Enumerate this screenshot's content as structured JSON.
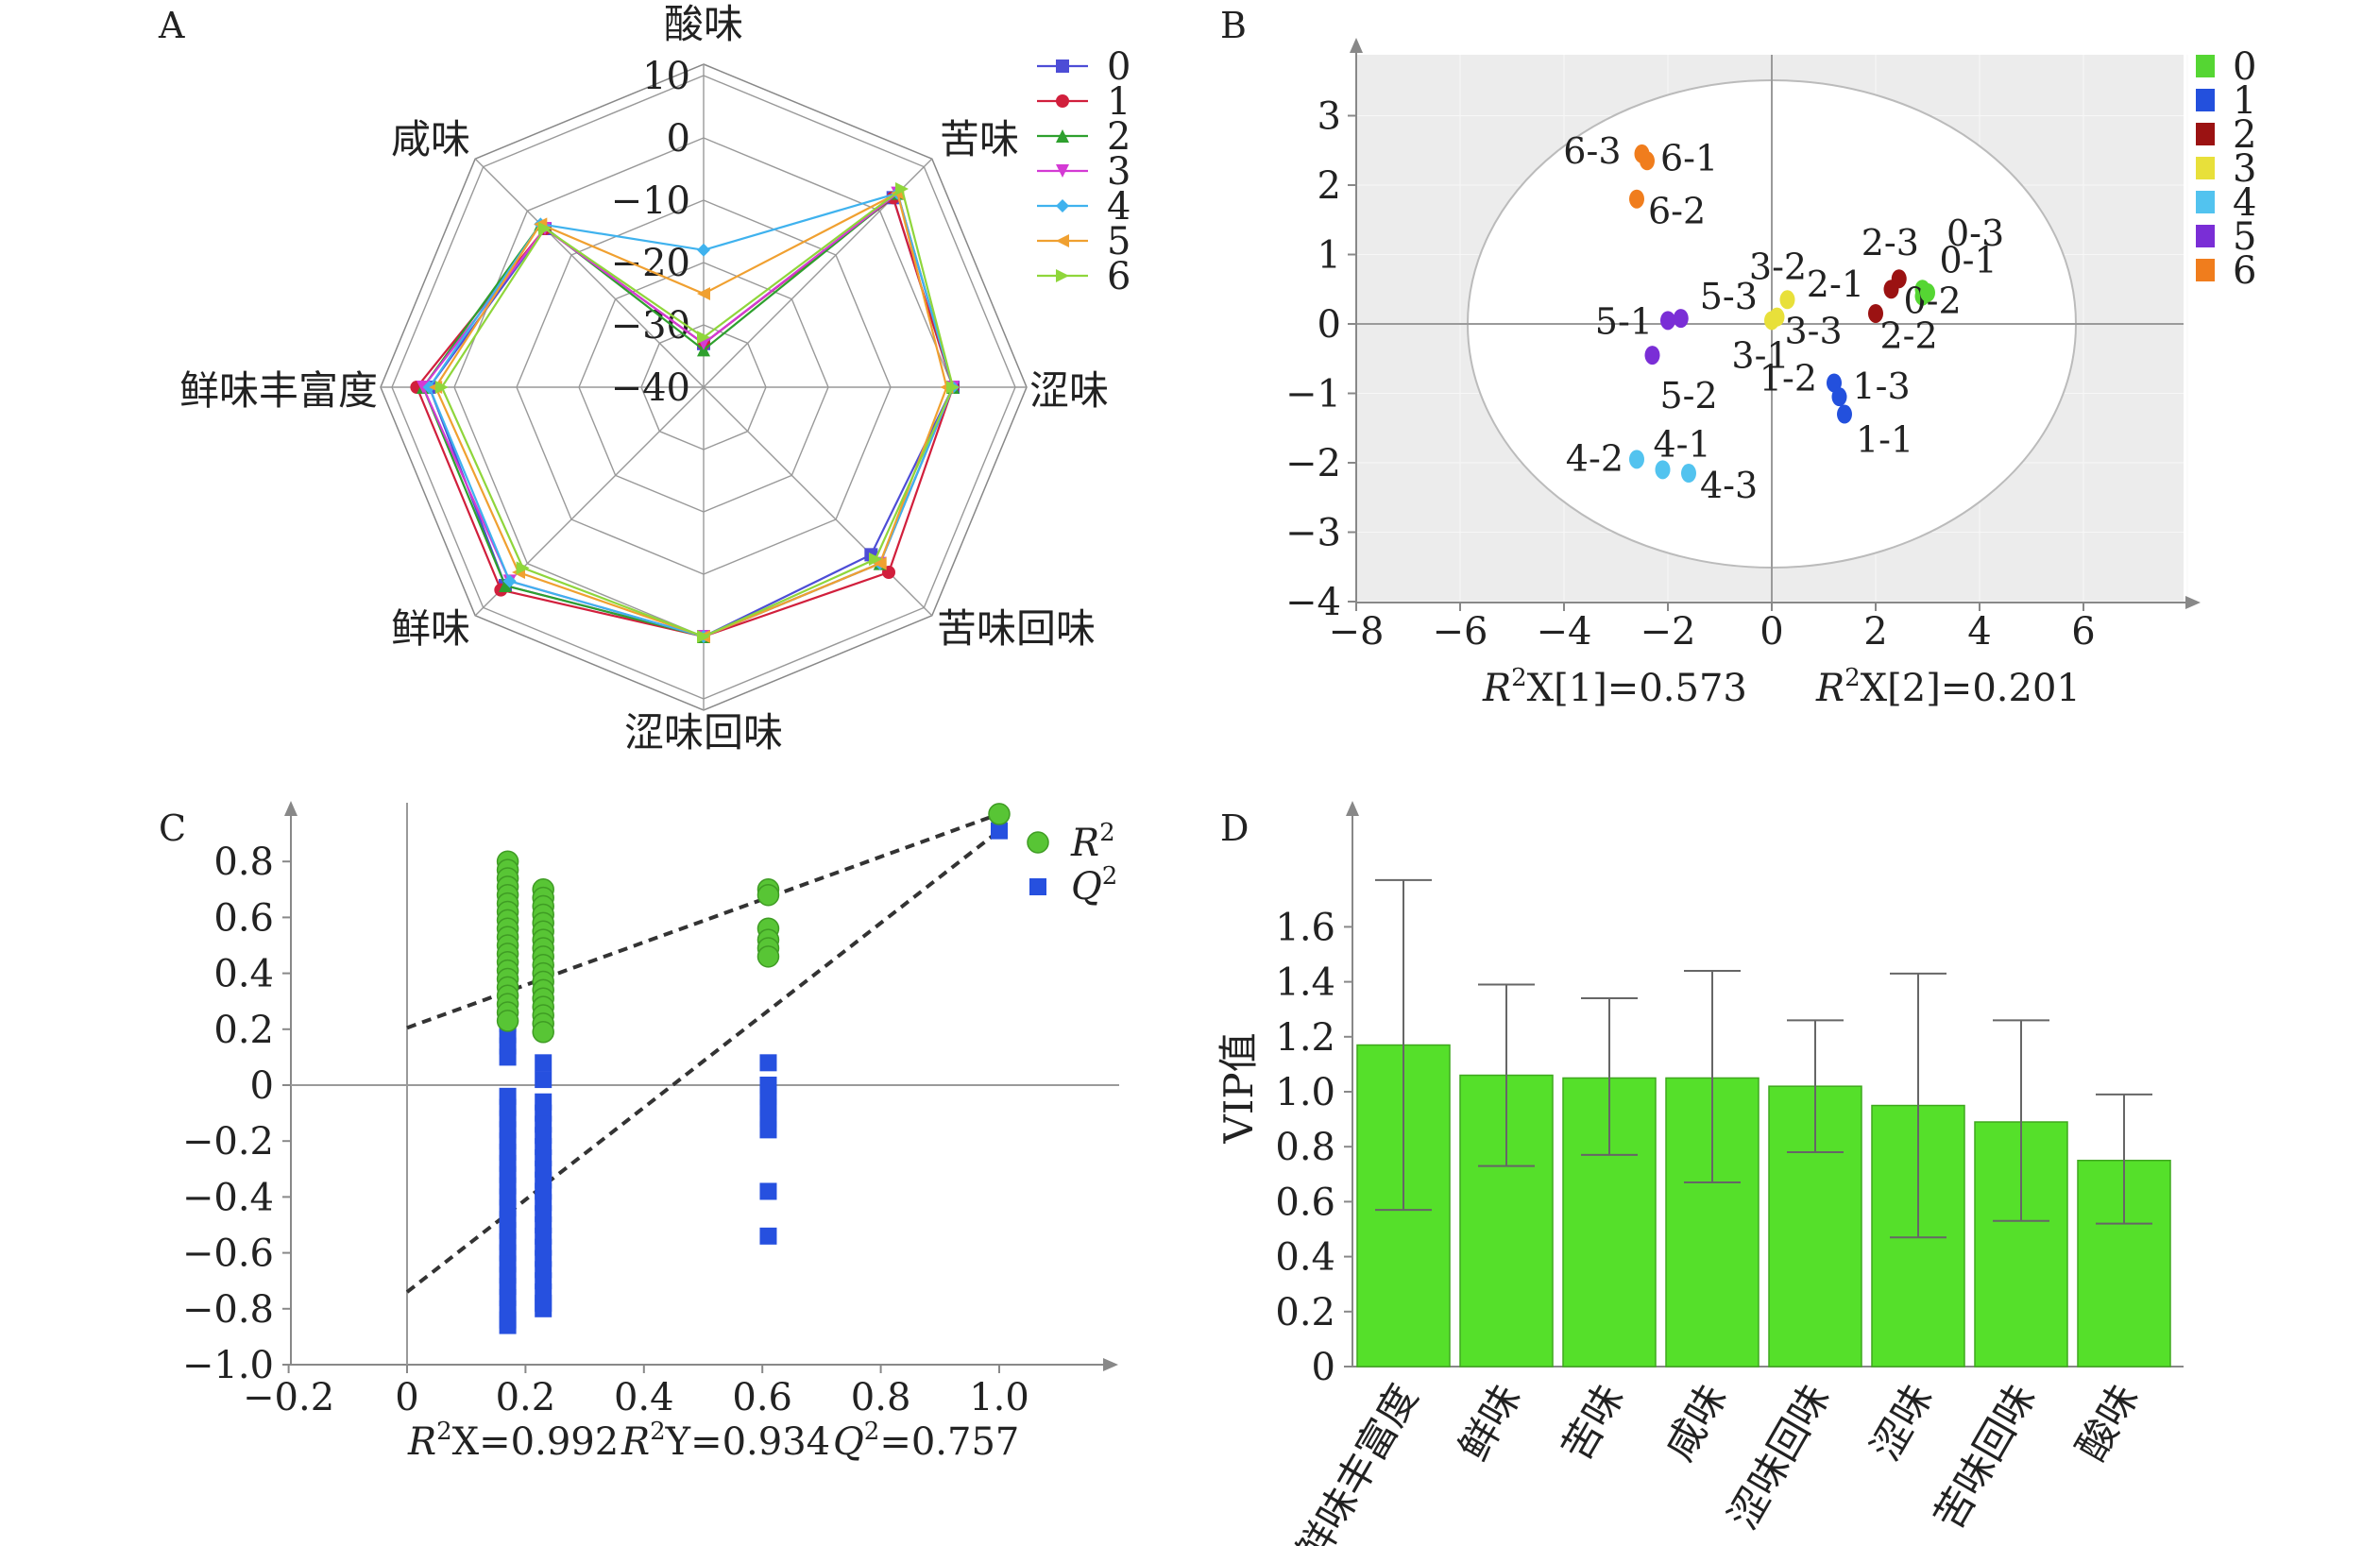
{
  "colors": {
    "s0": "#4d4dd6",
    "s1": "#d11f3c",
    "s2": "#2ea02e",
    "s3": "#d43ad4",
    "s4": "#3fb2ee",
    "s5": "#f0a030",
    "s6": "#8fd63b",
    "g0": "#55d633",
    "g1": "#2350dd",
    "g2": "#9b1212",
    "g3": "#e8e03a",
    "g4": "#52c3ef",
    "g5": "#7a2ed6",
    "g6": "#f07d1d",
    "bar": "#55e02a",
    "r2": "#58c535",
    "q2": "#2650df"
  },
  "chart_data": [
    {
      "panel": "A",
      "type": "radar",
      "axes": [
        "酸味",
        "苦味",
        "涩味",
        "苦味回味",
        "涩味回味",
        "鲜味",
        "鲜味丰富度",
        "咸味"
      ],
      "r_ticks": [
        "10",
        "0",
        "−10",
        "−20",
        "−30",
        "−40"
      ],
      "r_range": [
        -40,
        10
      ],
      "series": [
        {
          "name": "0",
          "values": [
            -33,
            3,
            0,
            -2,
            0,
            5,
            4,
            -4
          ]
        },
        {
          "name": "1",
          "values": [
            -33,
            3,
            0,
            2,
            0,
            6,
            6,
            -4
          ]
        },
        {
          "name": "2",
          "values": [
            -34,
            4,
            0,
            0,
            0,
            5,
            5,
            -3
          ]
        },
        {
          "name": "3",
          "values": [
            -33,
            4,
            0,
            0,
            0,
            4,
            5,
            -4
          ]
        },
        {
          "name": "4",
          "values": [
            -18,
            4,
            0,
            0,
            0,
            4,
            4,
            -3
          ]
        },
        {
          "name": "5",
          "values": [
            -25,
            4,
            -1,
            0,
            0,
            2,
            3,
            -3
          ]
        },
        {
          "name": "6",
          "values": [
            -32,
            5,
            0,
            -1,
            0,
            1,
            2,
            -4
          ]
        }
      ]
    },
    {
      "panel": "B",
      "type": "scatter",
      "xlim": [
        -8,
        8
      ],
      "ylim": [
        -4,
        3.7
      ],
      "x_ticks": [
        "−8",
        "−6",
        "−4",
        "−2",
        "0",
        "2",
        "4",
        "6"
      ],
      "y_ticks": [
        "3",
        "2",
        "1",
        "0",
        "−1",
        "−2",
        "−3",
        "−4"
      ],
      "xlabel_1": {
        "r": "R",
        "sup": "2",
        "rest": "X[1]=0.573"
      },
      "xlabel_2": {
        "r": "R",
        "sup": "2",
        "rest": "X[2]=0.201"
      },
      "legend": [
        "0",
        "1",
        "2",
        "3",
        "4",
        "5",
        "6"
      ],
      "points": [
        {
          "label": "0-1",
          "x": 2.9,
          "y": 0.5,
          "group": 0
        },
        {
          "label": "0-2",
          "x": 2.9,
          "y": 0.4,
          "group": 0
        },
        {
          "label": "0-3",
          "x": 3.0,
          "y": 0.45,
          "group": 0
        },
        {
          "label": "1-1",
          "x": 1.4,
          "y": -1.3,
          "group": 1
        },
        {
          "label": "1-2",
          "x": 1.2,
          "y": -0.85,
          "group": 1
        },
        {
          "label": "1-3",
          "x": 1.3,
          "y": -1.05,
          "group": 1
        },
        {
          "label": "2-1",
          "x": 2.0,
          "y": 0.15,
          "group": 2
        },
        {
          "label": "2-2",
          "x": 2.3,
          "y": 0.5,
          "group": 2
        },
        {
          "label": "2-3",
          "x": 2.45,
          "y": 0.65,
          "group": 2
        },
        {
          "label": "3-1",
          "x": 0.0,
          "y": 0.05,
          "group": 3
        },
        {
          "label": "3-2",
          "x": 0.3,
          "y": 0.35,
          "group": 3
        },
        {
          "label": "3-3",
          "x": 0.1,
          "y": 0.1,
          "group": 3
        },
        {
          "label": "4-1",
          "x": -2.1,
          "y": -2.1,
          "group": 4
        },
        {
          "label": "4-2",
          "x": -2.6,
          "y": -1.95,
          "group": 4
        },
        {
          "label": "4-3",
          "x": -1.6,
          "y": -2.15,
          "group": 4
        },
        {
          "label": "5-1",
          "x": -2.0,
          "y": 0.05,
          "group": 5
        },
        {
          "label": "5-2",
          "x": -2.3,
          "y": -0.45,
          "group": 5
        },
        {
          "label": "5-3",
          "x": -1.75,
          "y": 0.08,
          "group": 5
        },
        {
          "label": "6-1",
          "x": -2.4,
          "y": 2.35,
          "group": 6
        },
        {
          "label": "6-2",
          "x": -2.6,
          "y": 1.8,
          "group": 6
        },
        {
          "label": "6-3",
          "x": -2.5,
          "y": 2.45,
          "group": 6
        }
      ]
    },
    {
      "panel": "C",
      "type": "scatter",
      "xlim": [
        -0.2,
        1.2
      ],
      "ylim": [
        -1.0,
        0.95
      ],
      "x_ticks": [
        "−0.2",
        "0",
        "0.2",
        "0.4",
        "0.6",
        "0.8",
        "1.0"
      ],
      "y_ticks": [
        "0.8",
        "0.6",
        "0.4",
        "0.2",
        "0",
        "−0.2",
        "−0.4",
        "−0.6",
        "−0.8",
        "−1.0"
      ],
      "legend": [
        {
          "r": "R",
          "sup": "2"
        },
        {
          "r": "Q",
          "sup": "2"
        }
      ],
      "footer": [
        {
          "r": "R",
          "sup": "2",
          "rest": "X=0.992"
        },
        {
          "r": "R",
          "sup": "2",
          "rest": "Y=0.934"
        },
        {
          "r": "Q",
          "sup": "2",
          "rest": "=0.757"
        }
      ],
      "r2_points": [
        [
          0.17,
          0.8
        ],
        [
          0.17,
          0.77
        ],
        [
          0.17,
          0.74
        ],
        [
          0.17,
          0.71
        ],
        [
          0.17,
          0.68
        ],
        [
          0.17,
          0.65
        ],
        [
          0.17,
          0.62
        ],
        [
          0.17,
          0.59
        ],
        [
          0.17,
          0.56
        ],
        [
          0.17,
          0.53
        ],
        [
          0.17,
          0.5
        ],
        [
          0.17,
          0.47
        ],
        [
          0.17,
          0.44
        ],
        [
          0.17,
          0.41
        ],
        [
          0.17,
          0.38
        ],
        [
          0.17,
          0.35
        ],
        [
          0.17,
          0.32
        ],
        [
          0.17,
          0.29
        ],
        [
          0.17,
          0.26
        ],
        [
          0.17,
          0.23
        ],
        [
          0.23,
          0.7
        ],
        [
          0.23,
          0.67
        ],
        [
          0.23,
          0.64
        ],
        [
          0.23,
          0.61
        ],
        [
          0.23,
          0.58
        ],
        [
          0.23,
          0.55
        ],
        [
          0.23,
          0.52
        ],
        [
          0.23,
          0.49
        ],
        [
          0.23,
          0.46
        ],
        [
          0.23,
          0.43
        ],
        [
          0.23,
          0.4
        ],
        [
          0.23,
          0.37
        ],
        [
          0.23,
          0.34
        ],
        [
          0.23,
          0.31
        ],
        [
          0.23,
          0.28
        ],
        [
          0.23,
          0.25
        ],
        [
          0.23,
          0.22
        ],
        [
          0.23,
          0.19
        ],
        [
          0.61,
          0.7
        ],
        [
          0.61,
          0.68
        ],
        [
          0.61,
          0.56
        ],
        [
          0.61,
          0.52
        ],
        [
          0.61,
          0.49
        ],
        [
          0.61,
          0.46
        ],
        [
          1.0,
          0.97
        ]
      ],
      "q2_points": [
        [
          0.17,
          0.22
        ],
        [
          0.17,
          0.18
        ],
        [
          0.17,
          0.14
        ],
        [
          0.17,
          0.1
        ],
        [
          0.17,
          -0.04
        ],
        [
          0.17,
          -0.08
        ],
        [
          0.17,
          -0.12
        ],
        [
          0.17,
          -0.16
        ],
        [
          0.17,
          -0.2
        ],
        [
          0.17,
          -0.24
        ],
        [
          0.17,
          -0.28
        ],
        [
          0.17,
          -0.32
        ],
        [
          0.17,
          -0.36
        ],
        [
          0.17,
          -0.4
        ],
        [
          0.17,
          -0.44
        ],
        [
          0.17,
          -0.48
        ],
        [
          0.17,
          -0.52
        ],
        [
          0.17,
          -0.56
        ],
        [
          0.17,
          -0.6
        ],
        [
          0.17,
          -0.64
        ],
        [
          0.17,
          -0.68
        ],
        [
          0.17,
          -0.72
        ],
        [
          0.17,
          -0.76
        ],
        [
          0.17,
          -0.8
        ],
        [
          0.17,
          -0.84
        ],
        [
          0.17,
          -0.86
        ],
        [
          0.23,
          0.08
        ],
        [
          0.23,
          0.02
        ],
        [
          0.23,
          -0.06
        ],
        [
          0.23,
          -0.1
        ],
        [
          0.23,
          -0.14
        ],
        [
          0.23,
          -0.18
        ],
        [
          0.23,
          -0.22
        ],
        [
          0.23,
          -0.26
        ],
        [
          0.23,
          -0.3
        ],
        [
          0.23,
          -0.34
        ],
        [
          0.23,
          -0.38
        ],
        [
          0.23,
          -0.42
        ],
        [
          0.23,
          -0.46
        ],
        [
          0.23,
          -0.5
        ],
        [
          0.23,
          -0.54
        ],
        [
          0.23,
          -0.58
        ],
        [
          0.23,
          -0.62
        ],
        [
          0.23,
          -0.66
        ],
        [
          0.23,
          -0.7
        ],
        [
          0.23,
          -0.74
        ],
        [
          0.23,
          -0.78
        ],
        [
          0.23,
          -0.8
        ],
        [
          0.61,
          0.08
        ],
        [
          0.61,
          0.0
        ],
        [
          0.61,
          -0.04
        ],
        [
          0.61,
          -0.08
        ],
        [
          0.61,
          -0.12
        ],
        [
          0.61,
          -0.16
        ],
        [
          0.61,
          -0.38
        ],
        [
          0.61,
          -0.54
        ],
        [
          1.0,
          0.91
        ]
      ],
      "r2_line": [
        [
          0,
          0.205
        ],
        [
          1.0,
          0.97
        ]
      ],
      "q2_line": [
        [
          0,
          -0.74
        ],
        [
          1.0,
          0.91
        ]
      ]
    },
    {
      "panel": "D",
      "type": "bar",
      "ylabel": "VIP值",
      "ylim": [
        0,
        1.8
      ],
      "y_ticks": [
        "1.6",
        "1.4",
        "1.2",
        "1.0",
        "0.8",
        "0.6",
        "0.4",
        "0.2",
        "0"
      ],
      "categories": [
        "鲜味丰富度",
        "鲜味",
        "苦味",
        "咸味",
        "涩味回味",
        "涩味",
        "苦味回味",
        "酸味"
      ],
      "values": [
        1.17,
        1.06,
        1.05,
        1.05,
        1.02,
        0.95,
        0.89,
        0.75
      ],
      "err_low": [
        0.57,
        0.73,
        0.77,
        0.67,
        0.78,
        0.47,
        0.53,
        0.52
      ],
      "err_high": [
        1.77,
        1.39,
        1.34,
        1.44,
        1.26,
        1.43,
        1.26,
        0.99
      ]
    }
  ],
  "panel_letters": [
    "A",
    "B",
    "C",
    "D"
  ]
}
